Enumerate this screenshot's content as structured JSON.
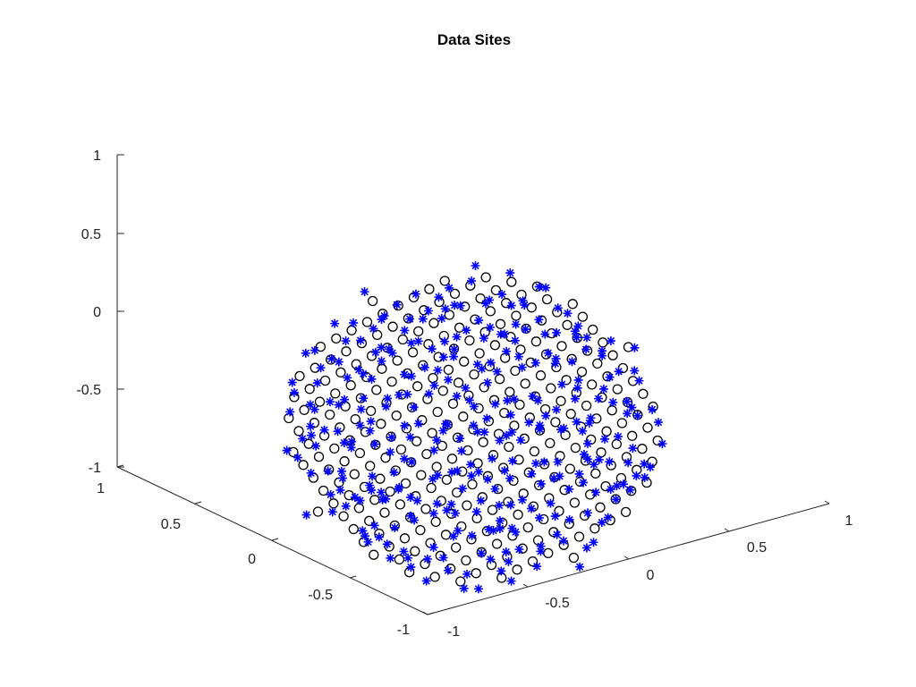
{
  "chart_data": {
    "type": "scatter3d",
    "title": "Data Sites",
    "xlabel": "",
    "ylabel": "",
    "zlabel": "",
    "xlim": [
      -1,
      1
    ],
    "ylim": [
      -1,
      1
    ],
    "zlim": [
      -1,
      1
    ],
    "x_ticks": [
      "-1",
      "-0.5",
      "0",
      "0.5",
      "1"
    ],
    "y_ticks": [
      "-1",
      "-0.5",
      "0",
      "0.5",
      "1"
    ],
    "z_ticks": [
      "-1",
      "-0.5",
      "0",
      "0.5",
      "1"
    ],
    "grid": false,
    "series": [
      {
        "marker": "o",
        "color": "#000000",
        "description": "circle markers: points on a regular grid inside the unit disk in the x-y plane, z = -x - y"
      },
      {
        "marker": "*",
        "color": "#0000ff",
        "description": "asterisk markers: the same sites with small random perturbations"
      }
    ],
    "disk_radius": 1.0,
    "grid_spacing": 0.1
  },
  "colors": {
    "background": "#ffffff",
    "axis": "#262626",
    "series_1": "#000000",
    "series_2": "#0000ff"
  }
}
